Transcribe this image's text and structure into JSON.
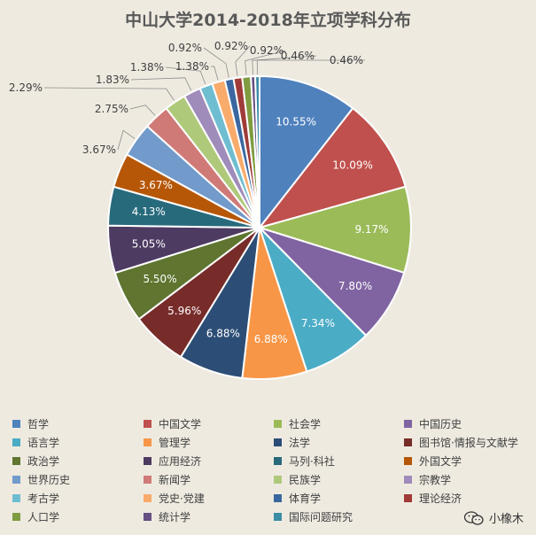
{
  "chart_data": {
    "type": "pie",
    "title": "中山大学2014-2018年立项学科分布",
    "labels": [
      "哲学",
      "中国文学",
      "社会学",
      "中国历史",
      "语言学",
      "管理学",
      "法学",
      "图书馆·情报与文献学",
      "政治学",
      "应用经济",
      "马列·科社",
      "外国文学",
      "世界历史",
      "新闻学",
      "民族学",
      "宗教学",
      "考古学",
      "党史·党建",
      "体育学",
      "理论经济",
      "人口学",
      "统计学",
      "国际问题研究"
    ],
    "values": [
      10.55,
      10.09,
      9.17,
      7.8,
      7.34,
      6.88,
      6.88,
      5.96,
      5.5,
      5.05,
      4.13,
      3.67,
      3.67,
      2.75,
      2.29,
      1.83,
      1.38,
      1.38,
      0.92,
      0.92,
      0.92,
      0.46,
      0.46
    ],
    "data_labels": [
      "10.55%",
      "10.09%",
      "9.17%",
      "7.80%",
      "7.34%",
      "6.88%",
      "6.88%",
      "5.96%",
      "5.50%",
      "5.05%",
      "4.13%",
      "3.67%",
      "3.67%",
      "2.75%",
      "2.29%",
      "1.83%",
      "1.38%",
      "1.38%",
      "0.92%",
      "0.92%",
      "0.92%",
      "0.46%",
      "0.46%"
    ],
    "colors": [
      "#4f81bd",
      "#c0504d",
      "#9bbb59",
      "#8064a2",
      "#4bacc6",
      "#f79646",
      "#2c4d75",
      "#772c2a",
      "#5f7530",
      "#4d3b62",
      "#276a7c",
      "#b65708",
      "#729aca",
      "#d07a78",
      "#afc97a",
      "#a08cba",
      "#6fbdd1",
      "#f9ab6b",
      "#3a67a0",
      "#9f3b38",
      "#7f9c40",
      "#664f82",
      "#3b8da5"
    ],
    "legend_position": "bottom",
    "start_angle_deg": 0,
    "direction": "clockwise"
  },
  "watermark": {
    "text": "小橡木",
    "icon": "wechat-icon"
  }
}
